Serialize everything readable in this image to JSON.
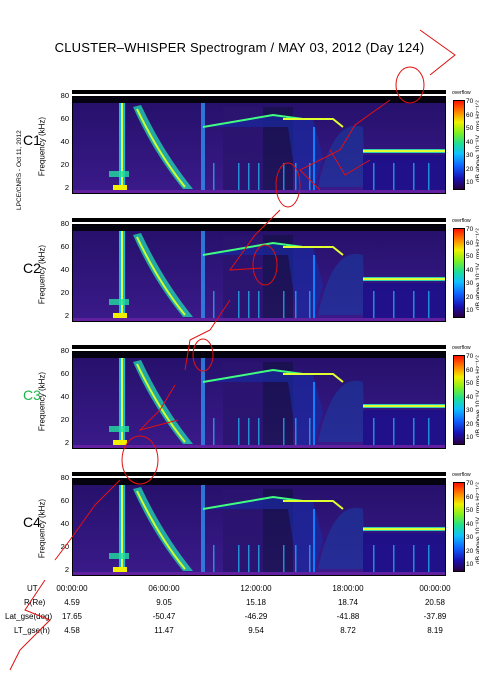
{
  "title": "CLUSTER–WHISPER Spectrogram / MAY 03, 2012 (Day 124)",
  "side_note": "LPCE/CNRS - Oct 11, 2012",
  "colorbar": {
    "over_label": "overflow",
    "ticks": [
      "70",
      "60",
      "50",
      "40",
      "30",
      "20",
      "10"
    ],
    "label": "dB above 10⁻⁸V_rms Hz⁻¹ᐟ²"
  },
  "chart_data": [
    {
      "type": "heatmap",
      "panel": "C1",
      "ylabel": "Frequency (kHz)",
      "yticks": [
        "80",
        "60",
        "40",
        "20",
        "2"
      ],
      "ylim": [
        2,
        80
      ],
      "label_color": "#000000"
    },
    {
      "type": "heatmap",
      "panel": "C2",
      "ylabel": "Frequency (kHz)",
      "yticks": [
        "80",
        "60",
        "40",
        "20",
        "2"
      ],
      "ylim": [
        2,
        80
      ],
      "label_color": "#000000"
    },
    {
      "type": "heatmap",
      "panel": "C3",
      "ylabel": "Frequency (kHz)",
      "yticks": [
        "80",
        "60",
        "40",
        "20",
        "2"
      ],
      "ylim": [
        2,
        80
      ],
      "label_color": "#17b64b"
    },
    {
      "type": "heatmap",
      "panel": "C4",
      "ylabel": "Frequency (kHz)",
      "yticks": [
        "80",
        "60",
        "40",
        "20",
        "2"
      ],
      "ylim": [
        2,
        80
      ],
      "label_color": "#000000"
    }
  ],
  "ephemeris": {
    "headers": [
      "UT",
      "R(Re)",
      "Lat_gse(deg)",
      "LT_gse(h)"
    ],
    "columns": [
      {
        "ut": "00:00:00",
        "r": "4.59",
        "lat": "17.65",
        "lt": "4.58"
      },
      {
        "ut": "06:00:00",
        "r": "9.05",
        "lat": "-50.47",
        "lt": "11.47"
      },
      {
        "ut": "12:00:00",
        "r": "15.18",
        "lat": "-46.29",
        "lt": "9.54"
      },
      {
        "ut": "18:00:00",
        "r": "18.74",
        "lat": "-41.88",
        "lt": "8.72"
      },
      {
        "ut": "00:00:00",
        "r": "20.58",
        "lat": "-37.89",
        "lt": "8.19"
      }
    ]
  },
  "colors": {
    "annotation": "#e01010",
    "plot_bg": "#1a0a40"
  }
}
